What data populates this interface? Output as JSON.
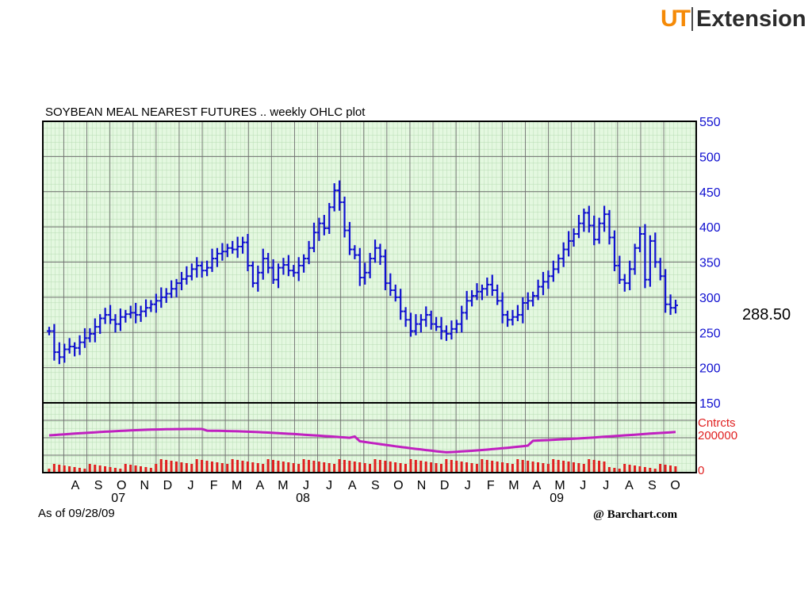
{
  "header": {
    "logo_mark": "UT",
    "logo_text": "Extension"
  },
  "last_price_label": "288.50",
  "footer": {
    "as_of": "As of 09/28/09",
    "credit": "@ Barchart.com"
  },
  "colors": {
    "price": "#1010d0",
    "volume": "#e02020",
    "open_interest": "#c020c0",
    "grid_bg": "#e4f8e0",
    "axis_text": "#1010d0",
    "sub_axis_text": "#e02020"
  },
  "chart_data": {
    "type": "ohlc",
    "title": "SOYBEAN MEAL NEAREST FUTURES .. weekly OHLC plot",
    "x_months": [
      "A",
      "S",
      "O",
      "N",
      "D",
      "J",
      "F",
      "M",
      "A",
      "M",
      "J",
      "J",
      "A",
      "S",
      "O",
      "N",
      "D",
      "J",
      "F",
      "M",
      "A",
      "M",
      "J",
      "J",
      "A",
      "S",
      "O"
    ],
    "x_years": [
      {
        "label": "07",
        "month_index": 2
      },
      {
        "label": "08",
        "month_index": 10
      },
      {
        "label": "09",
        "month_index": 21
      }
    ],
    "ylim": [
      150,
      550
    ],
    "y_ticks": [
      150,
      200,
      250,
      300,
      350,
      400,
      450,
      500,
      550
    ],
    "sub_axis_labels": [
      "Cntrcts",
      "200000",
      "0"
    ],
    "approx_weekly_close": [
      252,
      222,
      215,
      226,
      230,
      228,
      236,
      242,
      248,
      258,
      270,
      275,
      268,
      262,
      272,
      276,
      278,
      275,
      280,
      285,
      290,
      295,
      300,
      305,
      312,
      320,
      326,
      330,
      340,
      345,
      338,
      342,
      355,
      362,
      365,
      370,
      368,
      372,
      378,
      345,
      320,
      335,
      355,
      342,
      325,
      342,
      346,
      338,
      335,
      345,
      355,
      370,
      392,
      405,
      398,
      428,
      452,
      435,
      395,
      368,
      360,
      328,
      335,
      355,
      370,
      358,
      320,
      310,
      300,
      280,
      268,
      252,
      262,
      268,
      275,
      262,
      258,
      252,
      248,
      255,
      262,
      278,
      295,
      302,
      308,
      312,
      318,
      310,
      295,
      275,
      268,
      272,
      275,
      292,
      295,
      302,
      315,
      322,
      330,
      340,
      355,
      368,
      380,
      390,
      405,
      420,
      402,
      382,
      405,
      418,
      385,
      345,
      325,
      320,
      340,
      370,
      390,
      325,
      380,
      350,
      330,
      290,
      285,
      288.5
    ]
  }
}
